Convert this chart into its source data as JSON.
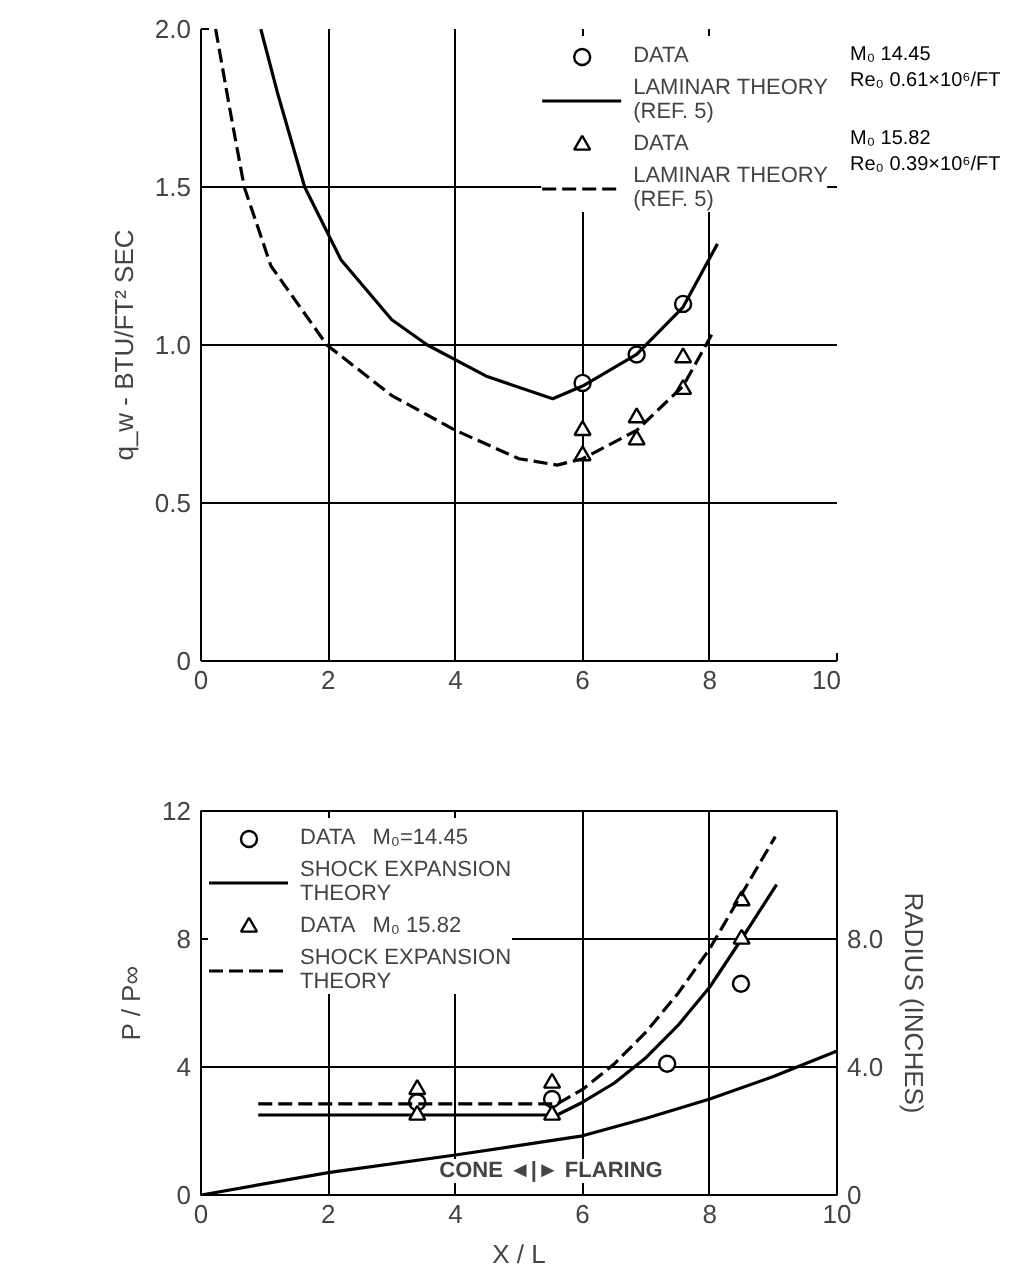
{
  "chart_data": [
    {
      "type": "line",
      "ylabel": "q_w - BTU/FT² SEC",
      "xlim": [
        0,
        10
      ],
      "ylim": [
        0,
        2.0
      ],
      "xticks": [
        0,
        2,
        4,
        6,
        8,
        10
      ],
      "yticks": [
        0,
        {
          "value": 0.5,
          "label": "0.5"
        },
        {
          "value": 1,
          "label": "1.0"
        },
        {
          "value": 1.5,
          "label": "1.5"
        },
        {
          "value": 2,
          "label": "2.0"
        }
      ],
      "grid": true,
      "legend": "top right",
      "annotations": [
        "M₀ 14.45\nRe₀ 0.61×10⁶/FT",
        "M₀ 15.82\nRe₀ 0.39×10⁶/FT"
      ],
      "series": [
        {
          "name": "DATA",
          "type": "scatter",
          "marker": "circle",
          "color": "#000000",
          "x": [
            6.0,
            6.85,
            7.58
          ],
          "values": [
            0.88,
            0.97,
            1.13
          ]
        },
        {
          "name": "LAMINAR THEORY\n(REF. 5)",
          "line_style": "solid",
          "color": "#000000",
          "x": [
            0.94,
            1.2,
            1.63,
            2.2,
            3.0,
            3.56,
            4.5,
            5.53,
            6.0,
            6.85,
            7.58,
            8.12
          ],
          "values": [
            2.0,
            1.8,
            1.5,
            1.27,
            1.08,
            1.0,
            0.9,
            0.83,
            0.87,
            0.97,
            1.12,
            1.32
          ]
        },
        {
          "name": "DATA",
          "type": "scatter",
          "marker": "triangle",
          "color": "#000000",
          "x": [
            6.0,
            6.0,
            6.85,
            6.85,
            7.58,
            7.58
          ],
          "values": [
            0.73,
            0.65,
            0.77,
            0.7,
            0.96,
            0.86
          ]
        },
        {
          "name": "LAMINAR THEORY\n(REF. 5)",
          "line_style": "dashed",
          "color": "#000000",
          "x": [
            0.23,
            0.45,
            0.68,
            1.1,
            1.98,
            3.0,
            4.0,
            5.0,
            5.6,
            6.0,
            6.85,
            7.58,
            8.05
          ],
          "values": [
            2.0,
            1.75,
            1.5,
            1.25,
            1.0,
            0.84,
            0.73,
            0.64,
            0.62,
            0.64,
            0.73,
            0.87,
            1.04
          ]
        }
      ]
    },
    {
      "type": "line",
      "xlabel": "X / L",
      "ylabel": "P / P∞",
      "y2label": "RADIUS (INCHES)",
      "xlim": [
        0,
        10
      ],
      "ylim": [
        0,
        12
      ],
      "y2lim": [
        0,
        12
      ],
      "xticks": [
        0,
        2,
        4,
        6,
        8,
        10
      ],
      "yticks": [
        0,
        4,
        8,
        12
      ],
      "y2ticks": [
        0,
        {
          "value": 4,
          "label": "4.0"
        },
        {
          "value": 8,
          "label": "8.0"
        }
      ],
      "grid": true,
      "legend": "top left",
      "annotations": [
        "CONE ◄|► FLARING"
      ],
      "series": [
        {
          "name": "DATA   M₀=14.45",
          "type": "scatter",
          "marker": "circle",
          "color": "#000000",
          "x": [
            3.4,
            5.52,
            7.33,
            8.49
          ],
          "values": [
            2.9,
            3.0,
            4.1,
            6.6
          ]
        },
        {
          "name": "SHOCK EXPANSION\nTHEORY",
          "line_style": "solid",
          "color": "#000000",
          "x": [
            0.9,
            5.6,
            6.0,
            6.5,
            7.0,
            7.5,
            8.0,
            8.5,
            9.05
          ],
          "values": [
            2.5,
            2.5,
            2.9,
            3.5,
            4.3,
            5.3,
            6.5,
            8.0,
            9.7
          ]
        },
        {
          "name": "DATA   M₀ 15.82",
          "type": "scatter",
          "marker": "triangle",
          "color": "#000000",
          "x": [
            3.4,
            3.4,
            5.52,
            5.52,
            8.5,
            8.5
          ],
          "values": [
            3.3,
            2.5,
            3.5,
            2.5,
            9.2,
            8.0
          ]
        },
        {
          "name": "SHOCK EXPANSION\nTHEORY",
          "line_style": "dashed",
          "color": "#000000",
          "x": [
            0.9,
            5.6,
            6.0,
            6.5,
            7.0,
            7.5,
            8.0,
            8.5,
            9.03
          ],
          "values": [
            2.85,
            2.85,
            3.3,
            4.1,
            5.1,
            6.3,
            7.7,
            9.4,
            11.2
          ]
        },
        {
          "axis": "y2",
          "line_style": "solid",
          "color": "#000000",
          "x": [
            0,
            2,
            4,
            5.5,
            6,
            7,
            8,
            9,
            10
          ],
          "values": [
            0,
            0.7,
            1.25,
            1.7,
            1.85,
            2.4,
            3.0,
            3.7,
            4.5
          ]
        }
      ]
    }
  ]
}
